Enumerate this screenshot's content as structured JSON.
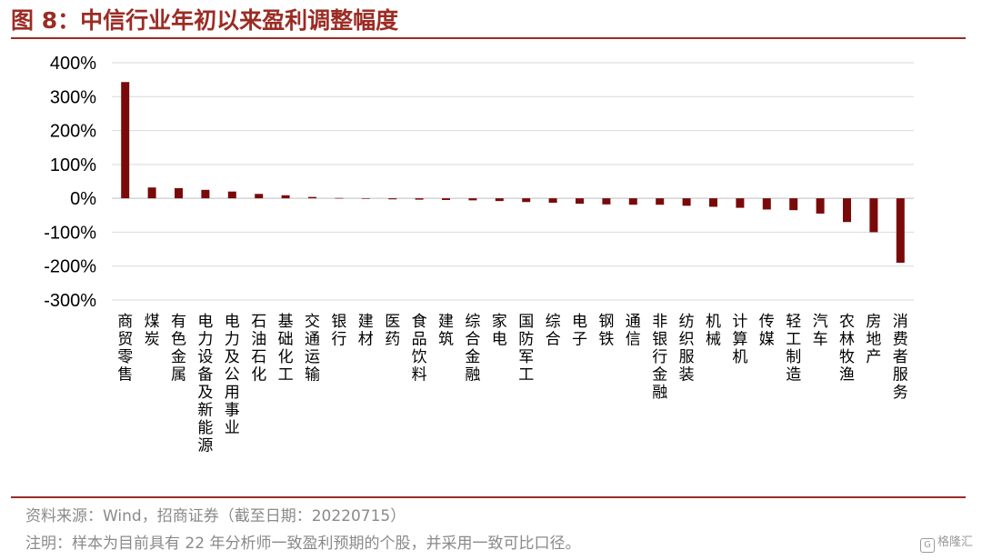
{
  "figure": {
    "title": "图 8：中信行业年初以来盈利调整幅度",
    "source": "资料来源：Wind，招商证券（截至日期：20220715）",
    "remark": "注明：样本为目前具有 22 年分析师一致盈利预期的个股，并采用一致可比口径。",
    "watermark": "格隆汇"
  },
  "colors": {
    "accent": "#9b2c24",
    "bar": "#7a0a0a",
    "grid": "#d9d9d9"
  },
  "chart_data": {
    "type": "bar",
    "title": "中信行业年初以来盈利调整幅度",
    "xlabel": "",
    "ylabel": "",
    "ylim": [
      -300,
      400
    ],
    "yticks": [
      400,
      300,
      200,
      100,
      0,
      -100,
      -200,
      -300
    ],
    "ytick_labels": [
      "400%",
      "300%",
      "200%",
      "100%",
      "0%",
      "-100%",
      "-200%",
      "-300%"
    ],
    "grid": true,
    "unit": "%",
    "categories": [
      "商贸零售",
      "煤炭",
      "有色金属",
      "电力设备及新能源",
      "电力及公用事业",
      "石油石化",
      "基础化工",
      "交通运输",
      "银行",
      "建材",
      "医药",
      "食品饮料",
      "建筑",
      "综合金融",
      "家电",
      "国防军工",
      "综合",
      "电子",
      "钢铁",
      "通信",
      "非银行金融",
      "纺织服装",
      "机械",
      "计算机",
      "传媒",
      "轻工制造",
      "汽车",
      "农林牧渔",
      "房地产",
      "消费者服务"
    ],
    "values": [
      343,
      32,
      30,
      25,
      20,
      13,
      9,
      4,
      1,
      0,
      -3,
      -4,
      -5,
      -6,
      -8,
      -11,
      -13,
      -16,
      -18,
      -19,
      -19,
      -22,
      -25,
      -28,
      -33,
      -35,
      -45,
      -70,
      -100,
      -190
    ]
  }
}
